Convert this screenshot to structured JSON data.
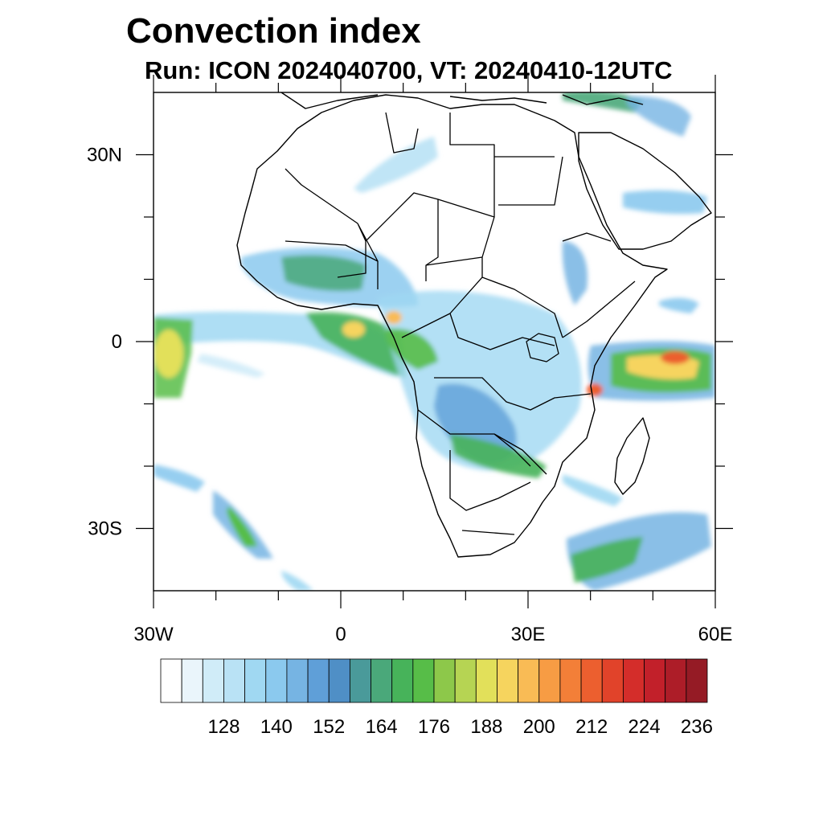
{
  "title": "Convection index",
  "subtitle": "Run: ICON 2024040700,  VT: 20240410-12UTC",
  "map": {
    "lon_range": [
      -30,
      60
    ],
    "lat_range": [
      -40,
      40
    ],
    "x_tick_labels": [
      {
        "lon": -30,
        "label": "30W"
      },
      {
        "lon": 0,
        "label": "0"
      },
      {
        "lon": 30,
        "label": "30E"
      },
      {
        "lon": 60,
        "label": "60E"
      }
    ],
    "y_tick_labels": [
      {
        "lat": 30,
        "label": "30N"
      },
      {
        "lat": 0,
        "label": "0"
      },
      {
        "lat": -30,
        "label": "30S"
      }
    ]
  },
  "colorbar": {
    "colors": [
      "#ffffff",
      "#eaf5fb",
      "#d0ecf8",
      "#b9e2f5",
      "#a0d8f2",
      "#8bc9ee",
      "#76b4e3",
      "#5f9fd8",
      "#4f8fc6",
      "#4a9a9a",
      "#4aa87a",
      "#47b35a",
      "#57bd48",
      "#8dc84a",
      "#b6d453",
      "#e2e05a",
      "#f6d45e",
      "#f9bb55",
      "#f79c44",
      "#f37f38",
      "#ec5f2f",
      "#e1432a",
      "#d42d2a",
      "#c2202a",
      "#ad1d28",
      "#951b25"
    ],
    "tick_labels": [
      "128",
      "140",
      "152",
      "164",
      "176",
      "188",
      "200",
      "212",
      "224",
      "236"
    ]
  }
}
